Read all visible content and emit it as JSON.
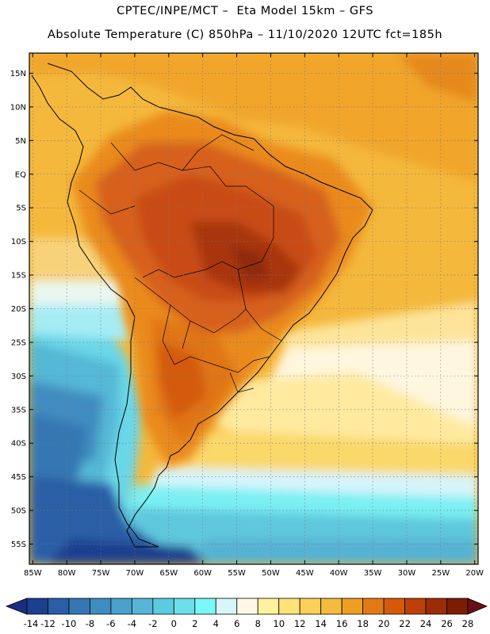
{
  "header": {
    "line1": "CPTEC/INPE/MCT –  Eta Model 15km – GFS",
    "line2": "Absolute Temperature (C) 850hPa – 11/10/2020 12UTC fct=185h"
  },
  "map": {
    "lat_labels": [
      "15N",
      "10N",
      "5N",
      "EQ",
      "5S",
      "10S",
      "15S",
      "20S",
      "25S",
      "30S",
      "35S",
      "40S",
      "45S",
      "50S",
      "55S"
    ],
    "lat_values": [
      15,
      10,
      5,
      0,
      -5,
      -10,
      -15,
      -20,
      -25,
      -30,
      -35,
      -40,
      -45,
      -50,
      -55
    ],
    "lon_labels": [
      "85W",
      "80W",
      "75W",
      "70W",
      "65W",
      "60W",
      "55W",
      "50W",
      "45W",
      "40W",
      "35W",
      "30W",
      "25W",
      "20W"
    ],
    "lon_values": [
      -85,
      -80,
      -75,
      -70,
      -65,
      -60,
      -55,
      -50,
      -45,
      -40,
      -35,
      -30,
      -25,
      -20
    ],
    "extent": {
      "lon_min": -85.5,
      "lon_max": -19.5,
      "lat_min": -58,
      "lat_max": 18
    },
    "variable": "Absolute Temperature (C) 850hPa"
  },
  "colorbar": {
    "labels": [
      "-14",
      "-12",
      "-10",
      "-8",
      "-6",
      "-4",
      "-2",
      "0",
      "2",
      "4",
      "6",
      "8",
      "10",
      "12",
      "14",
      "16",
      "18",
      "20",
      "22",
      "24",
      "26",
      "28"
    ],
    "colors": [
      "#1d3f8f",
      "#2a5ea6",
      "#3577b3",
      "#3f8cc0",
      "#4aa1cb",
      "#56b6d6",
      "#5ccbe0",
      "#6adfea",
      "#7af7f7",
      "#d6f6fb",
      "#fff7e6",
      "#fff29c",
      "#ffe17a",
      "#fbd05a",
      "#f4bc3e",
      "#ee9f22",
      "#e27a12",
      "#d45a0a",
      "#bd4008",
      "#9b2d06",
      "#7a1d04"
    ],
    "under_color": "#1a2e80",
    "over_color": "#6a1010"
  }
}
